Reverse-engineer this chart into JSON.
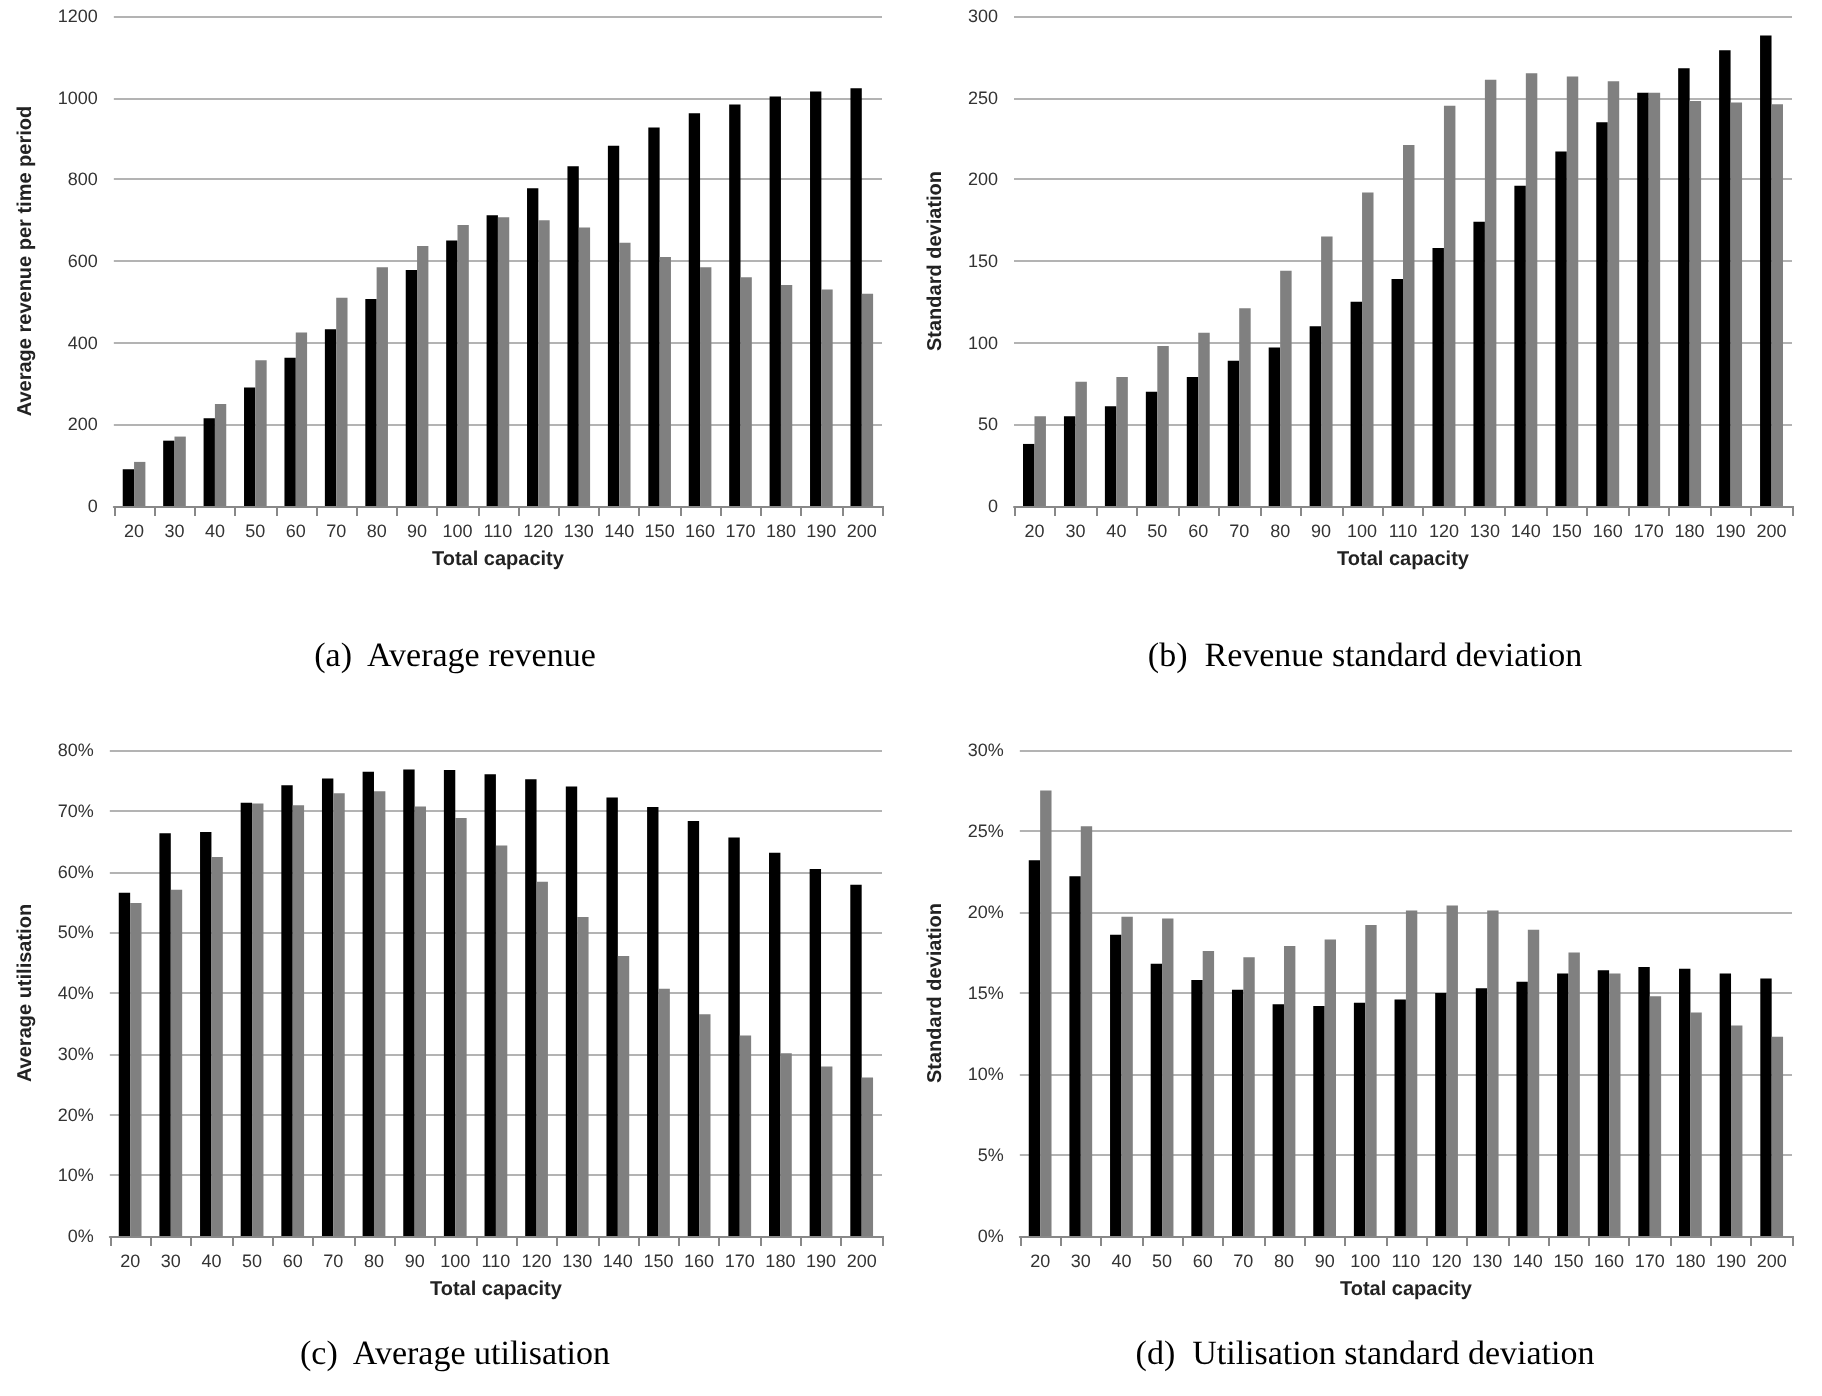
{
  "chart_data": [
    {
      "type": "bar",
      "title": "(a)  Average revenue",
      "xlabel": "Total capacity",
      "ylabel": "Average revenue per time period",
      "categories": [
        "20",
        "30",
        "40",
        "50",
        "60",
        "70",
        "80",
        "90",
        "100",
        "110",
        "120",
        "130",
        "140",
        "150",
        "160",
        "170",
        "180",
        "190",
        "200"
      ],
      "series": [
        {
          "color": "#000000",
          "values": [
            90,
            160,
            215,
            290,
            363,
            433,
            507,
            578,
            650,
            712,
            778,
            832,
            882,
            927,
            962,
            983,
            1003,
            1015,
            1023
          ]
        },
        {
          "color": "#808080",
          "values": [
            108,
            170,
            250,
            357,
            425,
            510,
            585,
            637,
            688,
            707,
            700,
            682,
            645,
            610,
            585,
            560,
            541,
            530,
            520
          ]
        }
      ],
      "ylim": [
        0,
        1200
      ],
      "yticks": [
        0,
        200,
        400,
        600,
        800,
        1000,
        1200
      ],
      "grid": "y"
    },
    {
      "type": "bar",
      "title": "(b)  Revenue standard deviation",
      "xlabel": "Total capacity",
      "ylabel": "Standard deviation",
      "categories": [
        "20",
        "30",
        "40",
        "50",
        "60",
        "70",
        "80",
        "90",
        "100",
        "110",
        "120",
        "130",
        "140",
        "150",
        "160",
        "170",
        "180",
        "190",
        "200"
      ],
      "series": [
        {
          "color": "#000000",
          "values": [
            38,
            55,
            61,
            70,
            79,
            89,
            97,
            110,
            125,
            139,
            158,
            174,
            196,
            217,
            235,
            253,
            268,
            279,
            288
          ]
        },
        {
          "color": "#808080",
          "values": [
            55,
            76,
            79,
            98,
            106,
            121,
            144,
            165,
            192,
            221,
            245,
            261,
            265,
            263,
            260,
            253,
            248,
            247,
            246
          ]
        }
      ],
      "ylim": [
        0,
        300
      ],
      "yticks": [
        0,
        50,
        100,
        150,
        200,
        250,
        300
      ],
      "grid": "y"
    },
    {
      "type": "bar",
      "title": "(c)  Average utilisation",
      "xlabel": "Total capacity",
      "ylabel": "Average utilisation",
      "categories": [
        "20",
        "30",
        "40",
        "50",
        "60",
        "70",
        "80",
        "90",
        "100",
        "110",
        "120",
        "130",
        "140",
        "150",
        "160",
        "170",
        "180",
        "190",
        "200"
      ],
      "series": [
        {
          "color": "#000000",
          "values": [
            56.5,
            66.3,
            66.5,
            71.3,
            74.2,
            75.3,
            76.4,
            76.8,
            76.7,
            76.0,
            75.2,
            74.0,
            72.2,
            70.6,
            68.3,
            65.6,
            63.1,
            60.4,
            57.8
          ]
        },
        {
          "color": "#808080",
          "values": [
            54.8,
            57.0,
            62.4,
            71.2,
            70.9,
            72.9,
            73.2,
            70.7,
            68.8,
            64.3,
            58.3,
            52.5,
            46.1,
            40.7,
            36.5,
            33.0,
            30.1,
            27.9,
            26.1
          ]
        }
      ],
      "ylim": [
        0,
        80
      ],
      "yticks": [
        {
          "value": 0,
          "label": "0%"
        },
        {
          "value": 10,
          "label": "10%"
        },
        {
          "value": 20,
          "label": "20%"
        },
        {
          "value": 30,
          "label": "30%"
        },
        {
          "value": 40,
          "label": "40%"
        },
        {
          "value": 50,
          "label": "50%"
        },
        {
          "value": 60,
          "label": "60%"
        },
        {
          "value": 70,
          "label": "70%"
        },
        {
          "value": 80,
          "label": "80%"
        }
      ],
      "grid": "y"
    },
    {
      "type": "bar",
      "title": "(d)  Utilisation standard deviation",
      "xlabel": "Total capacity",
      "ylabel": "Standard deviation",
      "categories": [
        "20",
        "30",
        "40",
        "50",
        "60",
        "70",
        "80",
        "90",
        "100",
        "110",
        "120",
        "130",
        "140",
        "150",
        "160",
        "170",
        "180",
        "190",
        "200"
      ],
      "series": [
        {
          "color": "#000000",
          "values": [
            23.2,
            22.2,
            18.6,
            16.8,
            15.8,
            15.2,
            14.3,
            14.2,
            14.4,
            14.6,
            15.0,
            15.3,
            15.7,
            16.2,
            16.4,
            16.6,
            16.5,
            16.2,
            15.9
          ]
        },
        {
          "color": "#808080",
          "values": [
            27.5,
            25.3,
            19.7,
            19.6,
            17.6,
            17.2,
            17.9,
            18.3,
            19.2,
            20.1,
            20.4,
            20.1,
            18.9,
            17.5,
            16.2,
            14.8,
            13.8,
            13.0,
            12.3
          ]
        }
      ],
      "ylim": [
        0,
        30
      ],
      "yticks": [
        {
          "value": 0,
          "label": "0%"
        },
        {
          "value": 5,
          "label": "5%"
        },
        {
          "value": 10,
          "label": "10%"
        },
        {
          "value": 15,
          "label": "15%"
        },
        {
          "value": 20,
          "label": "20%"
        },
        {
          "value": 25,
          "label": "25%"
        },
        {
          "value": 30,
          "label": "30%"
        }
      ],
      "grid": "y"
    }
  ]
}
